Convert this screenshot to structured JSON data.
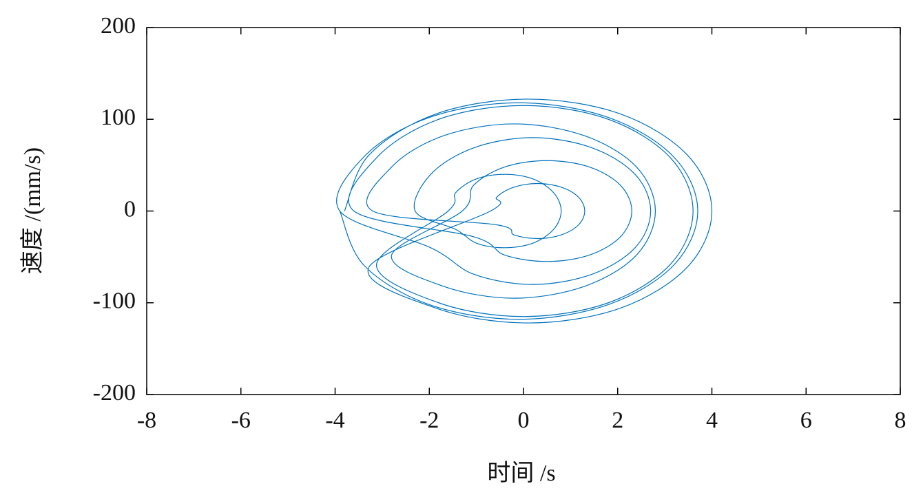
{
  "chart_data": {
    "type": "line",
    "x_label": "时间 /s",
    "y_label": "速度 /(mm/s)",
    "xlim": [
      -8,
      8
    ],
    "xticks": [
      -8,
      -6,
      -4,
      -2,
      0,
      2,
      4,
      6,
      8
    ],
    "ylim": [
      -200,
      200
    ],
    "yticks": [
      -200,
      -100,
      0,
      100,
      200
    ],
    "grid": false,
    "series": [
      {
        "color": "#0072bd",
        "x": [
          -3.8,
          -3.28,
          -1.85,
          0.1,
          2.05,
          3.48,
          4.0,
          3.48,
          2.05,
          0.1,
          -1.85,
          -3.28,
          -0.7,
          -0.57,
          -0.2,
          0.3,
          0.8,
          1.17,
          1.3,
          1.17,
          0.8,
          0.3,
          -0.2,
          -0.57,
          -3.2,
          -2.8,
          -1.7,
          -0.2,
          1.3,
          2.4,
          2.8,
          2.4,
          1.3,
          -0.2,
          -1.7,
          -2.8,
          -1.3,
          -1.06,
          -0.4,
          0.5,
          1.4,
          2.06,
          2.3,
          2.06,
          1.4,
          0.5,
          -0.4,
          -1.06,
          -3.6,
          -3.12,
          -1.8,
          0,
          1.8,
          3.12,
          3.6,
          3.12,
          1.8,
          0,
          -1.8,
          -3.12,
          -1.6,
          -1.44,
          -1.0,
          -0.4,
          0.2,
          0.64,
          0.8,
          0.64,
          0.2,
          -0.4,
          -1.0,
          -1.44,
          -2.3,
          -1.97,
          -1.05,
          0.2,
          1.45,
          2.37,
          2.7,
          2.37,
          1.45,
          0.2,
          -1.05,
          -1.97,
          -3.9,
          -3.39,
          -2.0,
          -0.1,
          1.8,
          3.19,
          3.7,
          3.19,
          1.8,
          -0.1,
          -2.0,
          -3.39,
          -3.9
        ],
        "values": [
          0,
          61,
          106,
          122,
          106,
          61,
          0,
          -61,
          -106,
          -122,
          -106,
          -61,
          0,
          15,
          26,
          30,
          26,
          15,
          0,
          -15,
          -26,
          -30,
          -26,
          -15,
          0,
          48,
          82,
          95,
          82,
          48,
          0,
          -48,
          -82,
          -95,
          -82,
          -48,
          0,
          28,
          48,
          55,
          48,
          28,
          0,
          -28,
          -48,
          -55,
          -48,
          -28,
          0,
          58,
          100,
          115,
          100,
          58,
          0,
          -58,
          -100,
          -115,
          -100,
          -58,
          0,
          20,
          35,
          40,
          35,
          20,
          0,
          -20,
          -35,
          -40,
          -35,
          -20,
          0,
          40,
          69,
          80,
          69,
          40,
          0,
          -40,
          -69,
          -80,
          -69,
          -40,
          0,
          59,
          102,
          118,
          102,
          59,
          0,
          -59,
          -102,
          -118,
          -102,
          -59,
          0
        ]
      }
    ]
  }
}
